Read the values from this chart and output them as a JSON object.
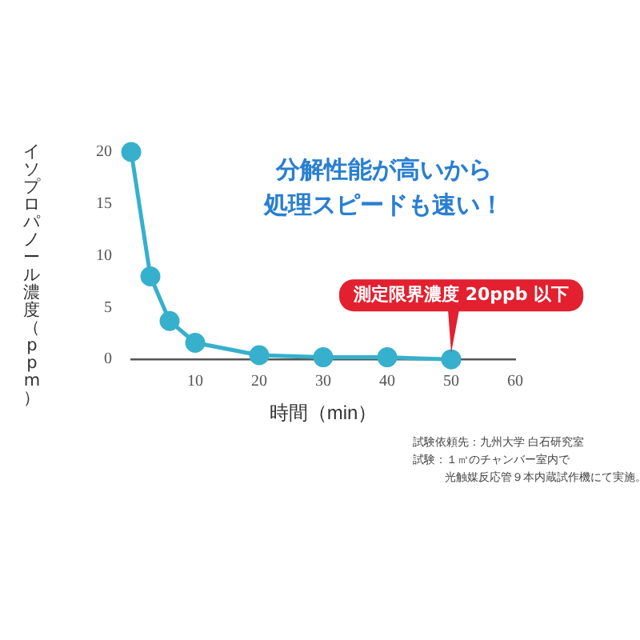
{
  "chart_data": {
    "type": "line",
    "title": "分解性能が高いから",
    "subtitle": "処理スピードも速い！",
    "xlabel": "時間（min）",
    "ylabel": "イソプロパノール濃度（ppm）",
    "x": [
      0,
      3,
      6,
      10,
      20,
      30,
      40,
      50
    ],
    "series": [
      {
        "color": "#36b0cc",
        "values": [
          20,
          8,
          3.7,
          1.6,
          0.4,
          0.2,
          0.2,
          0
        ]
      }
    ],
    "xlim": [
      0,
      60
    ],
    "xticks": [
      10,
      20,
      30,
      40,
      50,
      60
    ],
    "ylim": [
      0,
      20
    ],
    "yticks": [
      0,
      5,
      10,
      15,
      20
    ],
    "grid": false,
    "legend": false,
    "marker": "circle",
    "line_style": "solid",
    "annotations": [
      {
        "text": "測定限界濃度 20ppb 以下",
        "x": 50,
        "y": 0
      },
      "試験依頼先：九州大学 白石研究室",
      "試験：１㎥のチャンバー室内で",
      "光触媒反応管９本内蔵試作機にて実施。"
    ]
  }
}
